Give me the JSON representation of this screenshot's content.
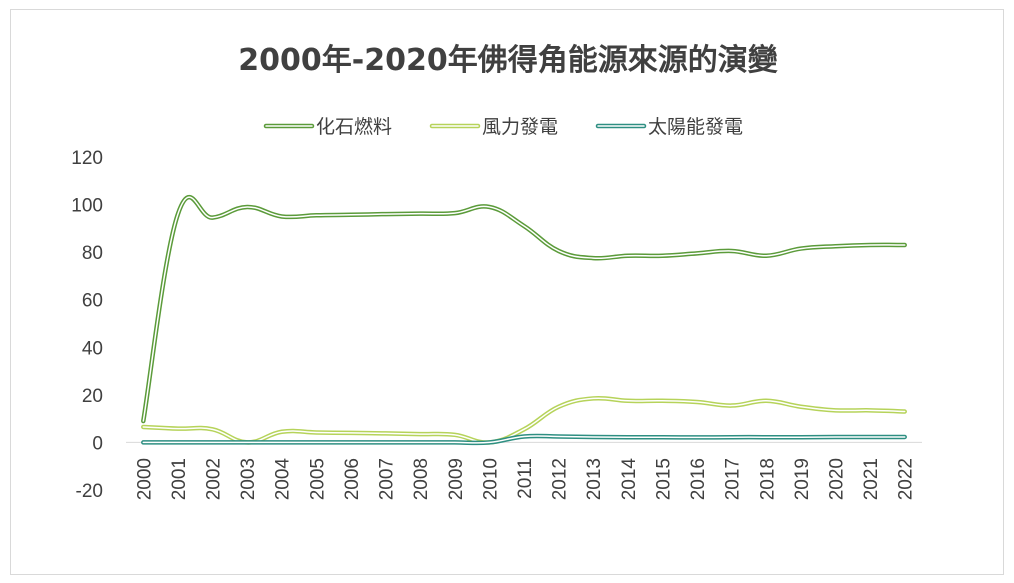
{
  "chart_data": {
    "type": "line",
    "title": "2000年-2020年佛得角能源來源的演變",
    "xlabel": "",
    "ylabel": "",
    "ylim": [
      -20,
      120
    ],
    "yticks": [
      -20,
      0,
      20,
      40,
      60,
      80,
      100,
      120
    ],
    "legend_position": "top",
    "categories": [
      "2000",
      "2001",
      "2002",
      "2003",
      "2004",
      "2005",
      "2006",
      "2007",
      "2008",
      "2009",
      "2010",
      "2011",
      "2012",
      "2013",
      "2014",
      "2015",
      "2016",
      "2017",
      "2018",
      "2019",
      "2020",
      "2021",
      "2022"
    ],
    "series": [
      {
        "name": "化石燃料",
        "color": "#5b9b3a",
        "values": [
          9,
          96,
          94.5,
          99,
          95,
          95.5,
          95.7,
          96,
          96.2,
          96.4,
          99,
          91,
          80.5,
          77.5,
          78.5,
          78.5,
          79.5,
          80.5,
          78.5,
          81.5,
          82.5,
          83,
          83
        ]
      },
      {
        "name": "風力發電",
        "color": "#b6d35a",
        "values": [
          6.5,
          5.8,
          5.5,
          0,
          4.5,
          4.2,
          4,
          3.8,
          3.5,
          3.2,
          0,
          5.5,
          15,
          18.5,
          17.5,
          17.5,
          17,
          15.5,
          17.5,
          15,
          13.5,
          13.5,
          13
        ]
      },
      {
        "name": "太陽能發電",
        "color": "#2e8f82",
        "values": [
          0,
          0,
          0,
          0,
          0,
          0,
          0,
          0,
          0,
          0,
          0,
          2.5,
          2.5,
          2.3,
          2.2,
          2.2,
          2.1,
          2.2,
          2.2,
          2.2,
          2.3,
          2.3,
          2.3
        ]
      }
    ]
  }
}
